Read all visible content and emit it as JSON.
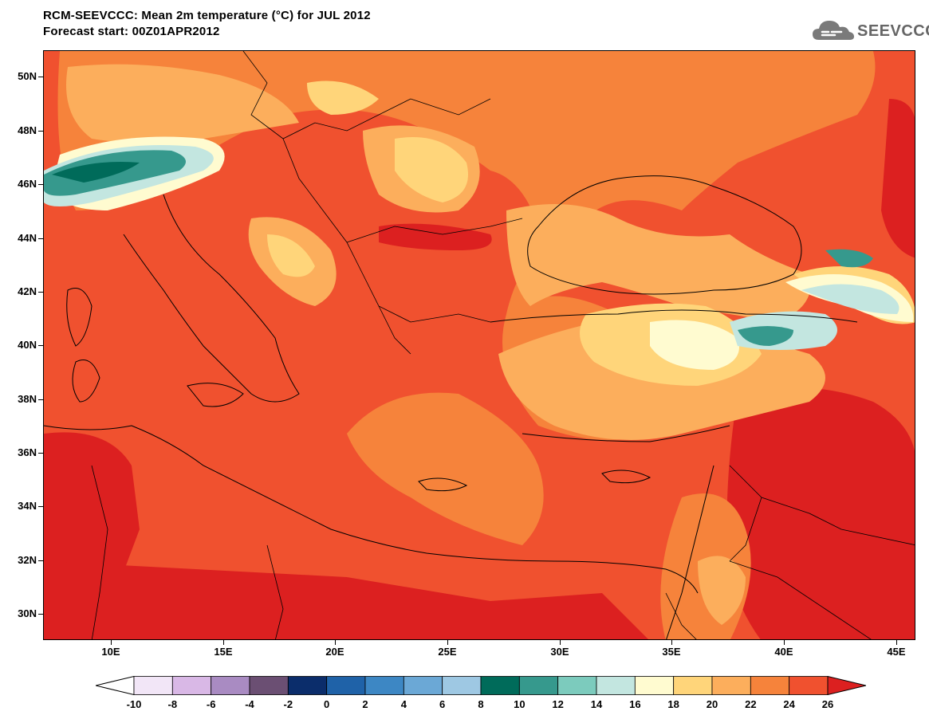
{
  "title": {
    "line1": "RCM-SEEVCCC: Mean 2m temperature (°C) for JUL 2012",
    "line2": "Forecast start: 00Z01APR2012"
  },
  "logo": {
    "text": "SEEVCCC",
    "icon": "cloud-logo-icon"
  },
  "map": {
    "lat_labels": [
      "50N",
      "48N",
      "46N",
      "44N",
      "42N",
      "40N",
      "38N",
      "36N",
      "34N",
      "32N",
      "30N"
    ],
    "lon_labels": [
      "10E",
      "15E",
      "20E",
      "25E",
      "30E",
      "35E",
      "40E",
      "45E"
    ]
  },
  "colorbar": {
    "labels": [
      "-10",
      "-8",
      "-6",
      "-4",
      "-2",
      "0",
      "2",
      "4",
      "6",
      "8",
      "10",
      "12",
      "14",
      "16",
      "18",
      "20",
      "22",
      "24",
      "26"
    ],
    "colors": [
      "#f2e6f7",
      "#d9b8e6",
      "#a98bc2",
      "#6b4f73",
      "#0b2d6b",
      "#1f62a8",
      "#3d87c4",
      "#6ba8d6",
      "#9ec8e3",
      "#006b5a",
      "#36998d",
      "#7ccbbd",
      "#c3e6e0",
      "#fffbd0",
      "#ffd57a",
      "#fcae5c",
      "#f6833b",
      "#f0512f"
    ],
    "under_color": "#ffffff",
    "over_color": "#dc2020"
  }
}
